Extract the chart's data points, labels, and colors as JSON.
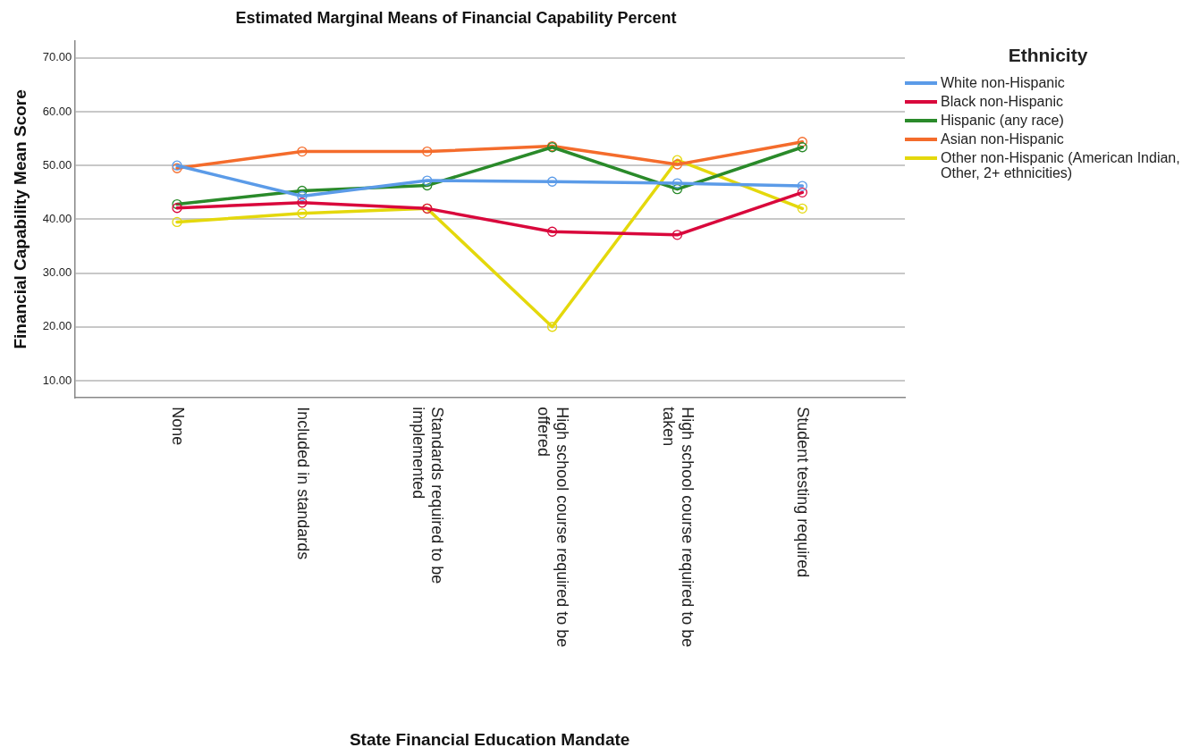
{
  "chart_data": {
    "type": "line",
    "title": "Estimated Marginal Means of Financial Capability Percent",
    "xlabel": "State Financial Education Mandate",
    "ylabel": "Financial Capability Mean Score",
    "legend_title": "Ethnicity",
    "categories": [
      "None",
      "Included in standards",
      "Standards required to be implemented",
      "High school course required to be offered",
      "High school course required to be taken",
      "Student testing required"
    ],
    "series": [
      {
        "name": "White non-Hispanic",
        "color": "#5b9be8",
        "values": [
          50.0,
          44.3,
          47.2,
          47.0,
          46.7,
          46.2
        ]
      },
      {
        "name": "Black non-Hispanic",
        "color": "#d9083c",
        "values": [
          42.1,
          43.1,
          42.0,
          37.7,
          37.1,
          45.0
        ]
      },
      {
        "name": "Hispanic (any race)",
        "color": "#2a8a2a",
        "values": [
          42.8,
          45.3,
          46.3,
          53.4,
          45.6,
          53.4
        ]
      },
      {
        "name": "Asian non-Hispanic",
        "color": "#f46c2c",
        "values": [
          49.5,
          52.6,
          52.6,
          53.6,
          50.2,
          54.4
        ]
      },
      {
        "name": "Other non-Hispanic (American Indian, Other, 2+ ethnicities)",
        "color": "#e4d80c",
        "values": [
          39.5,
          41.1,
          42.0,
          20.0,
          51.0,
          42.0
        ]
      }
    ],
    "ylim": [
      6.8,
      73.2
    ],
    "yticks": [
      {
        "value": 10,
        "label": "10.00"
      },
      {
        "value": 20,
        "label": "20.00"
      },
      {
        "value": 30,
        "label": "30.00"
      },
      {
        "value": 40,
        "label": "40.00"
      },
      {
        "value": 50,
        "label": "50.00"
      },
      {
        "value": 60,
        "label": "60.00"
      },
      {
        "value": 70,
        "label": "70.00"
      }
    ],
    "grid": "y",
    "legend": "right",
    "marker": "circle",
    "line_style": "solid"
  }
}
